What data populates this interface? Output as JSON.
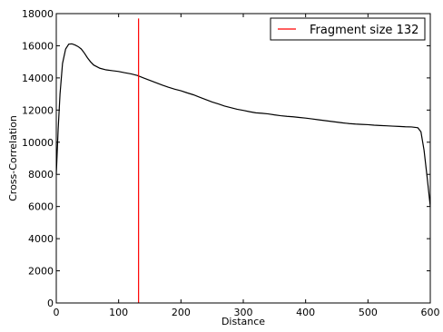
{
  "chart_data": {
    "type": "line",
    "title": "",
    "xlabel": "Distance",
    "ylabel": "Cross-Correlation",
    "xlim": [
      0,
      600
    ],
    "ylim": [
      0,
      18000
    ],
    "x_ticks": [
      0,
      100,
      200,
      300,
      400,
      500,
      600
    ],
    "y_ticks": [
      0,
      2000,
      4000,
      6000,
      8000,
      10000,
      12000,
      14000,
      16000,
      18000
    ],
    "grid": false,
    "legend_position": "top-right",
    "series": [
      {
        "type": "line",
        "color": "#000000",
        "x": [
          0,
          3,
          6,
          10,
          15,
          20,
          25,
          30,
          35,
          40,
          45,
          50,
          55,
          60,
          70,
          80,
          90,
          100,
          110,
          120,
          130,
          140,
          150,
          160,
          170,
          180,
          190,
          200,
          210,
          220,
          230,
          240,
          250,
          260,
          270,
          280,
          290,
          300,
          310,
          320,
          330,
          340,
          350,
          360,
          370,
          380,
          390,
          400,
          410,
          420,
          430,
          440,
          450,
          460,
          470,
          480,
          490,
          500,
          510,
          520,
          530,
          540,
          550,
          560,
          570,
          580,
          585,
          590,
          595,
          600
        ],
        "y": [
          8000,
          10800,
          13000,
          14900,
          15800,
          16100,
          16120,
          16050,
          15950,
          15800,
          15550,
          15250,
          15000,
          14800,
          14600,
          14500,
          14450,
          14400,
          14320,
          14250,
          14150,
          14000,
          13850,
          13700,
          13550,
          13420,
          13300,
          13200,
          13070,
          12950,
          12800,
          12650,
          12500,
          12380,
          12250,
          12150,
          12050,
          11980,
          11900,
          11830,
          11800,
          11760,
          11700,
          11650,
          11610,
          11580,
          11540,
          11500,
          11450,
          11400,
          11350,
          11300,
          11250,
          11200,
          11160,
          11130,
          11110,
          11090,
          11060,
          11040,
          11020,
          11000,
          10980,
          10960,
          10950,
          10900,
          10650,
          9500,
          7800,
          6000
        ]
      },
      {
        "name": "Fragment size 132",
        "type": "vline",
        "color": "#ff0000",
        "x": 132,
        "y_range": [
          0,
          17700
        ]
      }
    ]
  }
}
